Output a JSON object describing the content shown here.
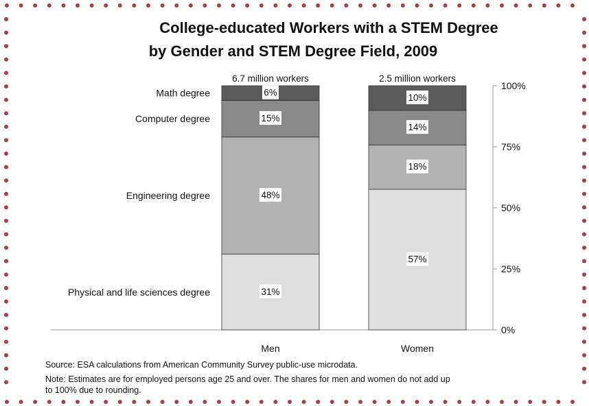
{
  "title_line1": "College-educated Workers with a STEM Degree",
  "title_line2": "by Gender and STEM Degree Field, 2009",
  "source": "Source:  ESA calculations from American Community Survey public-use microdata.",
  "note_line1": "Note: Estimates are for employed persons age 25 and over. The shares for men and women do not add up",
  "note_line2": "to 100% due to rounding.",
  "colors": {
    "border_dots": "#a3414a",
    "math": "#5a5a5a",
    "computer": "#8a8a8a",
    "engineering": "#b2b2b2",
    "physical": "#dedede"
  },
  "chart_data": {
    "type": "bar",
    "stacked": true,
    "title": "College-educated Workers with a STEM Degree by Gender and STEM Degree Field, 2009",
    "categories": [
      "Men",
      "Women"
    ],
    "category_totals": [
      "6.7 million workers",
      "2.5 million workers"
    ],
    "series": [
      {
        "name": "Physical and life sciences degree",
        "values": [
          31,
          57
        ],
        "labels": [
          "31%",
          "57%"
        ]
      },
      {
        "name": "Engineering degree",
        "values": [
          48,
          18
        ],
        "labels": [
          "48%",
          "18%"
        ]
      },
      {
        "name": "Computer degree",
        "values": [
          15,
          14
        ],
        "labels": [
          "15%",
          "14%"
        ]
      },
      {
        "name": "Math degree",
        "values": [
          6,
          10
        ],
        "labels": [
          "6%",
          "10%"
        ]
      }
    ],
    "ylim": [
      0,
      100
    ],
    "y_ticks": [
      0,
      25,
      50,
      75,
      100
    ],
    "y_tick_labels": [
      "0%",
      "25%",
      "50%",
      "75%",
      "100%"
    ],
    "y_axis_side": "right",
    "legend_placement": "left, labels aligned to Men segments",
    "grid": false
  }
}
